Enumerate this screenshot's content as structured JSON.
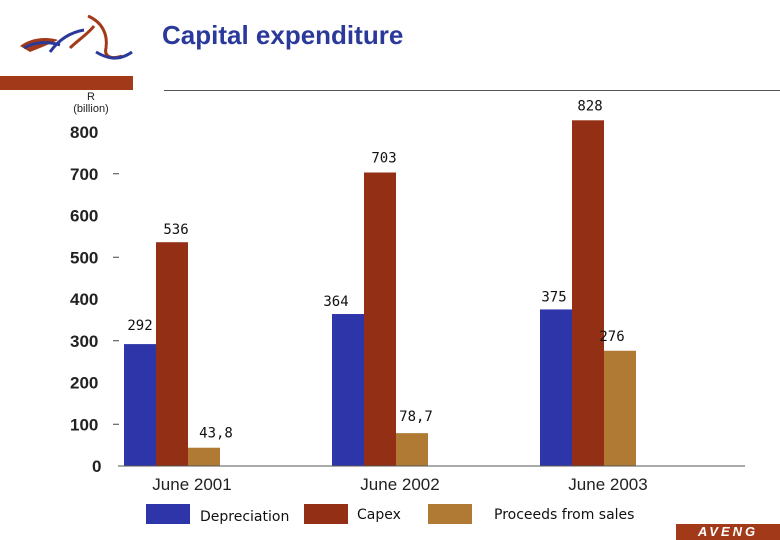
{
  "header": {
    "title": "Capital expenditure",
    "unit_line1": "R",
    "unit_line2": "(billion)"
  },
  "brand": {
    "name": "AVENG"
  },
  "colors": {
    "depreciation": "#2e35a8",
    "capex": "#932f14",
    "proceeds": "#b07a35",
    "accent_bar": "#a23a1a"
  },
  "chart_data": {
    "type": "bar",
    "categories": [
      "June 2001",
      "June 2002",
      "June 2003"
    ],
    "series": [
      {
        "name": "Depreciation",
        "values": [
          292,
          364,
          375
        ],
        "labels": [
          "292",
          "364",
          "375"
        ]
      },
      {
        "name": "Capex",
        "values": [
          536,
          703,
          828
        ],
        "labels": [
          "536",
          "703",
          "828"
        ]
      },
      {
        "name": "Proceeds from sales",
        "values": [
          43.8,
          78.7,
          276
        ],
        "labels": [
          "43,8",
          "78,7",
          "276"
        ]
      }
    ],
    "y_ticks": [
      "0",
      "100",
      "200",
      "300",
      "400",
      "500",
      "600",
      "700",
      "800"
    ],
    "ylim": [
      0,
      800
    ],
    "title": "Capital expenditure",
    "ylabel": "R (billion)",
    "xlabel": "",
    "legend_position": "bottom",
    "grid": false
  }
}
